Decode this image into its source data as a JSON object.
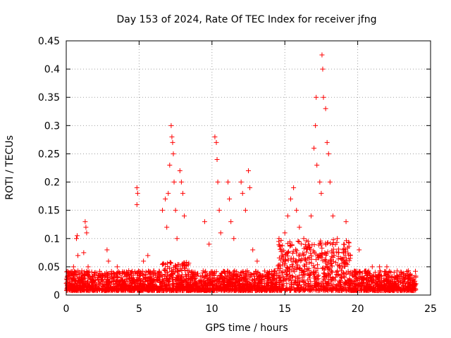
{
  "chart_data": {
    "type": "scatter",
    "title": "Day 153 of 2024, Rate Of TEC Index for receiver jfng",
    "xlabel": "GPS time / hours",
    "ylabel": "ROTI / TECUs",
    "xlim": [
      0,
      25
    ],
    "ylim": [
      0,
      0.45
    ],
    "xticks": [
      0,
      5,
      10,
      15,
      20,
      25
    ],
    "yticks": [
      0,
      0.05,
      0.1,
      0.15,
      0.2,
      0.25,
      0.3,
      0.35,
      0.4,
      0.45
    ],
    "xtick_labels": [
      "0",
      "5",
      "10",
      "15",
      "20",
      "25"
    ],
    "ytick_labels": [
      "0",
      "0.05",
      "0.1",
      "0.15",
      "0.2",
      "0.25",
      "0.3",
      "0.35",
      "0.4",
      "0.45"
    ],
    "grid": true,
    "marker": "+",
    "color": "#ff0000",
    "series": [
      {
        "name": "ROTI",
        "points": [
          [
            0.1,
            0.02
          ],
          [
            0.3,
            0.04
          ],
          [
            0.5,
            0.05
          ],
          [
            0.7,
            0.1
          ],
          [
            0.75,
            0.105
          ],
          [
            0.8,
            0.07
          ],
          [
            0.9,
            0.03
          ],
          [
            1.3,
            0.13
          ],
          [
            1.35,
            0.12
          ],
          [
            1.4,
            0.11
          ],
          [
            1.5,
            0.05
          ],
          [
            1.2,
            0.075
          ],
          [
            2.8,
            0.08
          ],
          [
            2.9,
            0.06
          ],
          [
            3.5,
            0.05
          ],
          [
            4.0,
            0.04
          ],
          [
            4.85,
            0.19
          ],
          [
            4.9,
            0.18
          ],
          [
            4.85,
            0.16
          ],
          [
            5.3,
            0.06
          ],
          [
            5.6,
            0.07
          ],
          [
            6.6,
            0.15
          ],
          [
            6.8,
            0.17
          ],
          [
            6.9,
            0.12
          ],
          [
            7.0,
            0.18
          ],
          [
            7.1,
            0.23
          ],
          [
            7.2,
            0.3
          ],
          [
            7.25,
            0.28
          ],
          [
            7.3,
            0.27
          ],
          [
            7.35,
            0.25
          ],
          [
            7.4,
            0.2
          ],
          [
            7.5,
            0.15
          ],
          [
            7.6,
            0.1
          ],
          [
            7.8,
            0.22
          ],
          [
            7.9,
            0.2
          ],
          [
            8.0,
            0.18
          ],
          [
            8.1,
            0.14
          ],
          [
            9.5,
            0.13
          ],
          [
            9.8,
            0.09
          ],
          [
            10.2,
            0.28
          ],
          [
            10.3,
            0.27
          ],
          [
            10.35,
            0.24
          ],
          [
            10.4,
            0.2
          ],
          [
            10.5,
            0.15
          ],
          [
            10.6,
            0.11
          ],
          [
            11.1,
            0.2
          ],
          [
            11.2,
            0.17
          ],
          [
            11.3,
            0.13
          ],
          [
            11.5,
            0.1
          ],
          [
            12.0,
            0.2
          ],
          [
            12.1,
            0.18
          ],
          [
            12.3,
            0.15
          ],
          [
            12.5,
            0.22
          ],
          [
            12.6,
            0.19
          ],
          [
            12.8,
            0.08
          ],
          [
            13.1,
            0.06
          ],
          [
            14.6,
            0.1
          ],
          [
            15.0,
            0.11
          ],
          [
            15.2,
            0.14
          ],
          [
            15.4,
            0.17
          ],
          [
            15.6,
            0.19
          ],
          [
            15.8,
            0.15
          ],
          [
            16.0,
            0.12
          ],
          [
            16.3,
            0.1
          ],
          [
            16.8,
            0.14
          ],
          [
            17.0,
            0.26
          ],
          [
            17.1,
            0.3
          ],
          [
            17.15,
            0.35
          ],
          [
            17.2,
            0.23
          ],
          [
            17.4,
            0.2
          ],
          [
            17.5,
            0.18
          ],
          [
            17.55,
            0.425
          ],
          [
            17.6,
            0.4
          ],
          [
            17.65,
            0.35
          ],
          [
            17.8,
            0.33
          ],
          [
            17.9,
            0.27
          ],
          [
            18.0,
            0.25
          ],
          [
            18.1,
            0.2
          ],
          [
            18.3,
            0.14
          ],
          [
            18.6,
            0.1
          ],
          [
            19.0,
            0.08
          ],
          [
            19.2,
            0.13
          ],
          [
            19.5,
            0.07
          ],
          [
            20.1,
            0.08
          ],
          [
            21.0,
            0.05
          ],
          [
            21.5,
            0.05
          ],
          [
            22.0,
            0.05
          ],
          [
            22.5,
            0.04
          ],
          [
            23.0,
            0.04
          ],
          [
            23.5,
            0.035
          ],
          [
            24.0,
            0.02
          ]
        ]
      }
    ]
  }
}
